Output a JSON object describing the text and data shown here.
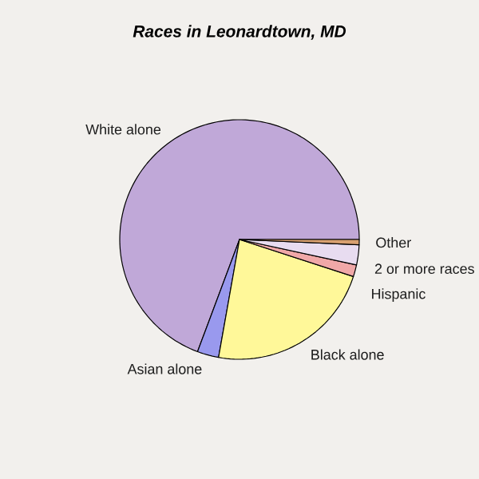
{
  "chart_data": {
    "type": "pie",
    "title": "Races in Leonardtown, MD",
    "categories": [
      "White alone",
      "Asian alone",
      "Black alone",
      "Hispanic",
      "2 or more races",
      "Other"
    ],
    "values": [
      69.3,
      2.9,
      22.8,
      1.6,
      2.7,
      0.7
    ],
    "colors": [
      "#c0a8d8",
      "#9999ee",
      "#fff899",
      "#f0a8a8",
      "#e8dcf0",
      "#d8a070"
    ]
  }
}
